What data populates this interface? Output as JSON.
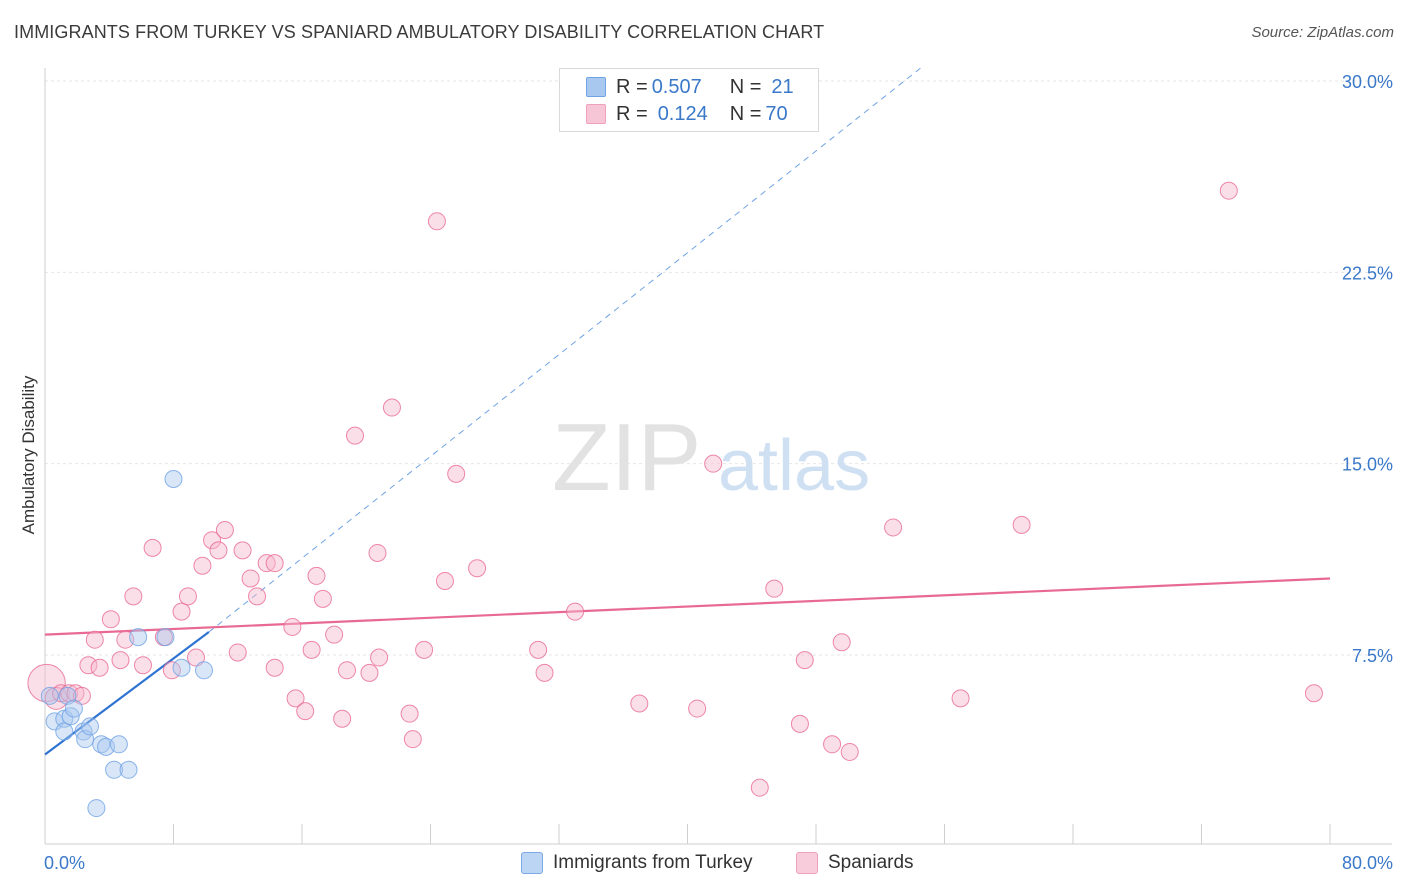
{
  "header": {
    "title": "IMMIGRANTS FROM TURKEY VS SPANIARD AMBULATORY DISABILITY CORRELATION CHART",
    "source": "Source: ZipAtlas.com"
  },
  "watermark": {
    "zip": "ZIP",
    "atlas": "atlas"
  },
  "legend": {
    "rows": [
      {
        "r_label": "R = ",
        "r_value": "0.507",
        "n_label": "N = ",
        "n_value": "21",
        "color": "#a9c8f0"
      },
      {
        "r_label": "R = ",
        "r_value": "0.124",
        "n_label": "N = ",
        "n_value": "70",
        "color": "#f7b8cc"
      }
    ]
  },
  "chart_data": {
    "type": "scatter",
    "title": "IMMIGRANTS FROM TURKEY VS SPANIARD AMBULATORY DISABILITY CORRELATION CHART",
    "ylabel": "Ambulatory Disability",
    "xlabel": "",
    "xlim": [
      0,
      80
    ],
    "ylim": [
      0,
      31
    ],
    "x_tick_labels": [
      "0.0%",
      "80.0%"
    ],
    "y_ticks": [
      7.5,
      15.0,
      22.5,
      30.0
    ],
    "y_tick_labels": [
      "7.5%",
      "15.0%",
      "22.5%",
      "30.0%"
    ],
    "grid": true,
    "legend_position": "top-center",
    "series": [
      {
        "name": "Immigrants from Turkey",
        "color": "#6fa3e3",
        "fill": "#a9c8f0",
        "trend": {
          "x": [
            0,
            10.2
          ],
          "y": [
            3.6,
            8.4
          ],
          "extended_to": [
            54.5,
            30.5
          ]
        },
        "points": [
          [
            0.3,
            5.9
          ],
          [
            0.6,
            4.9
          ],
          [
            1.2,
            5.0
          ],
          [
            1.2,
            4.5
          ],
          [
            1.4,
            5.9
          ],
          [
            1.6,
            5.1
          ],
          [
            1.8,
            5.4
          ],
          [
            2.4,
            4.5
          ],
          [
            2.5,
            4.2
          ],
          [
            2.8,
            4.7
          ],
          [
            3.5,
            4.0
          ],
          [
            3.8,
            3.9
          ],
          [
            4.6,
            4.0
          ],
          [
            4.3,
            3.0
          ],
          [
            5.2,
            3.0
          ],
          [
            3.2,
            1.5
          ],
          [
            5.8,
            8.2
          ],
          [
            7.5,
            8.2
          ],
          [
            8.0,
            14.4
          ],
          [
            8.5,
            7.0
          ],
          [
            9.9,
            6.9
          ]
        ],
        "sizes": [
          1,
          1,
          1,
          1,
          1,
          1,
          1,
          1,
          1,
          1,
          1,
          1,
          1,
          1,
          1,
          1,
          1,
          1,
          1,
          1,
          1
        ]
      },
      {
        "name": "Spaniards",
        "color": "#e86a93",
        "fill": "#f7b8cc",
        "trend": {
          "x": [
            0,
            80
          ],
          "y": [
            8.3,
            10.5
          ]
        },
        "points": [
          [
            0.1,
            6.4
          ],
          [
            0.7,
            5.8
          ],
          [
            1.0,
            6.0
          ],
          [
            1.5,
            6.0
          ],
          [
            1.9,
            6.0
          ],
          [
            2.3,
            5.9
          ],
          [
            2.7,
            7.1
          ],
          [
            3.1,
            8.1
          ],
          [
            3.4,
            7.0
          ],
          [
            4.1,
            8.9
          ],
          [
            4.7,
            7.3
          ],
          [
            5.0,
            8.1
          ],
          [
            5.5,
            9.8
          ],
          [
            6.1,
            7.1
          ],
          [
            6.7,
            11.7
          ],
          [
            7.4,
            8.2
          ],
          [
            7.9,
            6.9
          ],
          [
            8.5,
            9.2
          ],
          [
            8.9,
            9.8
          ],
          [
            9.4,
            7.4
          ],
          [
            9.8,
            11.0
          ],
          [
            10.4,
            12.0
          ],
          [
            10.8,
            11.6
          ],
          [
            11.2,
            12.4
          ],
          [
            12.0,
            7.6
          ],
          [
            12.3,
            11.6
          ],
          [
            12.8,
            10.5
          ],
          [
            13.2,
            9.8
          ],
          [
            13.8,
            11.1
          ],
          [
            14.3,
            11.1
          ],
          [
            14.3,
            7.0
          ],
          [
            15.4,
            8.6
          ],
          [
            15.6,
            5.8
          ],
          [
            16.2,
            5.3
          ],
          [
            16.6,
            7.7
          ],
          [
            16.9,
            10.6
          ],
          [
            17.3,
            9.7
          ],
          [
            18.0,
            8.3
          ],
          [
            18.5,
            5.0
          ],
          [
            18.8,
            6.9
          ],
          [
            19.3,
            16.1
          ],
          [
            20.2,
            6.8
          ],
          [
            20.7,
            11.5
          ],
          [
            20.8,
            7.4
          ],
          [
            21.6,
            17.2
          ],
          [
            22.7,
            5.2
          ],
          [
            22.9,
            4.2
          ],
          [
            23.6,
            7.7
          ],
          [
            24.4,
            24.5
          ],
          [
            24.9,
            10.4
          ],
          [
            25.6,
            14.6
          ],
          [
            26.9,
            10.9
          ],
          [
            30.7,
            7.7
          ],
          [
            31.1,
            6.8
          ],
          [
            33.0,
            9.2
          ],
          [
            37.0,
            5.6
          ],
          [
            40.6,
            5.4
          ],
          [
            41.6,
            15.0
          ],
          [
            44.5,
            2.3
          ],
          [
            45.4,
            10.1
          ],
          [
            47.0,
            4.8
          ],
          [
            47.3,
            7.3
          ],
          [
            49.0,
            4.0
          ],
          [
            49.6,
            8.0
          ],
          [
            50.1,
            3.7
          ],
          [
            52.8,
            12.5
          ],
          [
            57.0,
            5.8
          ],
          [
            60.8,
            12.6
          ],
          [
            73.7,
            25.7
          ],
          [
            79.0,
            6.0
          ]
        ],
        "sizes": [
          2.2,
          1.3,
          1,
          1,
          1,
          1,
          1,
          1,
          1,
          1,
          1,
          1,
          1,
          1,
          1,
          1,
          1,
          1,
          1,
          1,
          1,
          1,
          1,
          1,
          1,
          1,
          1,
          1,
          1,
          1,
          1,
          1,
          1,
          1,
          1,
          1,
          1,
          1,
          1,
          1,
          1,
          1,
          1,
          1,
          1,
          1,
          1,
          1,
          1,
          1,
          1,
          1,
          1,
          1,
          1,
          1,
          1,
          1,
          1,
          1,
          1,
          1,
          1,
          1,
          1,
          1,
          1,
          1,
          1,
          1
        ]
      }
    ]
  }
}
